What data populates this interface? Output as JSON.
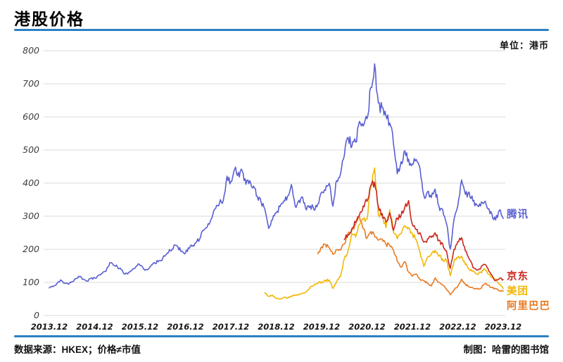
{
  "title": "港股价格",
  "unit_label": "单位：港币",
  "footer": {
    "source": "数据来源：HKEX；价格≠市值",
    "credit": "制图：哈雷的图书馆"
  },
  "colors": {
    "accent_rule_blue": "#2b80c2",
    "gridline": "#dadada",
    "tencent": "#5a5fd2",
    "jd": "#c9281e",
    "meituan": "#f2b705",
    "alibaba": "#e87a22"
  },
  "chart_data": {
    "type": "line",
    "title": "港股价格",
    "ylabel": "港币 (HKD)",
    "ylim": [
      0,
      800
    ],
    "yticks": [
      0,
      100,
      200,
      300,
      400,
      500,
      600,
      700,
      800
    ],
    "grid": true,
    "legend_position": "line-end-labels-right",
    "x_unit": "months since 2013.12 (monthly close, HKD)",
    "xticks": [
      {
        "label": "2013.12",
        "month": 0
      },
      {
        "label": "2014.12",
        "month": 12
      },
      {
        "label": "2015.12",
        "month": 24
      },
      {
        "label": "2016.12",
        "month": 36
      },
      {
        "label": "2017.12",
        "month": 48
      },
      {
        "label": "2018.12",
        "month": 60
      },
      {
        "label": "2019.12",
        "month": 72
      },
      {
        "label": "2020.12",
        "month": 84
      },
      {
        "label": "2021.12",
        "month": 96
      },
      {
        "label": "2022.12",
        "month": 108
      },
      {
        "label": "2023.12",
        "month": 120
      }
    ],
    "series": [
      {
        "id": "tencent",
        "name": "腾讯",
        "color": "#5a5fd2",
        "start_month": 0,
        "values": [
          83,
          88,
          96,
          107,
          99,
          95,
          103,
          110,
          117,
          110,
          105,
          112,
          113,
          121,
          128,
          134,
          160,
          152,
          148,
          140,
          124,
          130,
          141,
          150,
          152,
          140,
          138,
          152,
          158,
          165,
          172,
          185,
          196,
          212,
          206,
          196,
          189,
          204,
          212,
          222,
          236,
          262,
          278,
          296,
          322,
          340,
          350,
          418,
          405,
          445,
          430,
          436,
          396,
          406,
          394,
          362,
          345,
          320,
          263,
          290,
          312,
          330,
          345,
          360,
          395,
          330,
          346,
          356,
          320,
          330,
          321,
          336,
          375,
          381,
          400,
          330,
          410,
          430,
          482,
          540,
          512,
          520,
          590,
          572,
          595,
          688,
          760,
          640,
          625,
          602,
          582,
          520,
          425,
          465,
          494,
          472,
          455,
          470,
          446,
          362,
          372,
          358,
          380,
          330,
          318,
          280,
          200,
          292,
          330,
          408,
          365,
          372,
          345,
          332,
          330,
          342,
          320,
          305,
          290,
          320,
          295
        ]
      },
      {
        "id": "jd",
        "name": "京东",
        "color": "#c9281e",
        "start_month": 78,
        "values": [
          228,
          245,
          262,
          282,
          302,
          332,
          346,
          390,
          400,
          330,
          306,
          282,
          310,
          256,
          296,
          302,
          325,
          345,
          275,
          260,
          250,
          222,
          230,
          236,
          250,
          226,
          216,
          196,
          142,
          200,
          222,
          235,
          196,
          172,
          146,
          136,
          141,
          156,
          141,
          121,
          105,
          112,
          108
        ]
      },
      {
        "id": "meituan",
        "name": "美团",
        "color": "#f2b705",
        "start_month": 57,
        "values": [
          69,
          58,
          61,
          52,
          50,
          55,
          53,
          58,
          62,
          64,
          68,
          72,
          85,
          92,
          97,
          102,
          105,
          108,
          82,
          102,
          118,
          172,
          196,
          246,
          236,
          276,
          292,
          293,
          390,
          445,
          302,
          300,
          266,
          320,
          252,
          232,
          246,
          270,
          264,
          245,
          230,
          192,
          150,
          176,
          186,
          196,
          180,
          170,
          166,
          121,
          164,
          175,
          180,
          155,
          140,
          135,
          126,
          130,
          141,
          126,
          116,
          110,
          95,
          82
        ]
      },
      {
        "id": "alibaba",
        "name": "阿里巴巴",
        "color": "#e87a22",
        "start_month": 71,
        "values": [
          187,
          208,
          215,
          205,
          185,
          200,
          199,
          216,
          250,
          256,
          276,
          300,
          262,
          232,
          254,
          240,
          226,
          230,
          215,
          212,
          196,
          165,
          145,
          164,
          130,
          119,
          125,
          110,
          105,
          98,
          90,
          114,
          100,
          92,
          80,
          63,
          78,
          88,
          109,
          95,
          86,
          84,
          80,
          82,
          95,
          92,
          85,
          80,
          75,
          74
        ]
      }
    ]
  }
}
